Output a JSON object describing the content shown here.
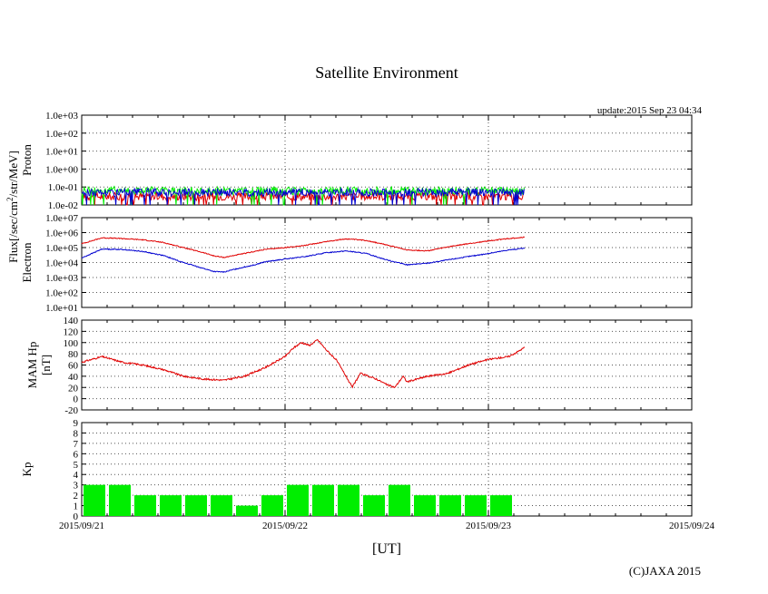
{
  "title": "Satellite Environment",
  "update": "update:2015 Sep 23 04:34",
  "copyright": "(C)JAXA 2015",
  "xlabel": "[UT]",
  "flux_label": "Flux[/sec/cm",
  "flux_sup": "2",
  "flux_label_tail": "/str/MeV]",
  "x_ticks": [
    "2015/09/21",
    "2015/09/22",
    "2015/09/23",
    "2015/09/24"
  ],
  "colors": {
    "red": "#e00000",
    "blue": "#0000d0",
    "green": "#00ee00",
    "grid": "#555555"
  },
  "chart_data": [
    {
      "type": "line",
      "panel": "proton",
      "ylabel": "Proton",
      "yscale": "log",
      "ylim": [
        0.01,
        1000
      ],
      "y_ticks": [
        "1.0e+03",
        "1.0e+02",
        "1.0e+01",
        "1.0e+00",
        "1.0e-01",
        "1.0e-02"
      ],
      "xlim_days": [
        0,
        3
      ],
      "series": [
        {
          "color": "red",
          "x": [
            0,
            0.5,
            1.0,
            1.5,
            2.0,
            2.18
          ],
          "y": [
            0.03,
            0.03,
            0.03,
            0.03,
            0.03,
            0.03
          ]
        },
        {
          "color": "green",
          "x": [
            0,
            0.5,
            1.0,
            1.5,
            2.0,
            2.18
          ],
          "y": [
            0.07,
            0.06,
            0.06,
            0.06,
            0.06,
            0.06
          ]
        },
        {
          "color": "blue",
          "x": [
            0,
            0.5,
            1.0,
            1.5,
            2.0,
            2.18
          ],
          "y": [
            0.05,
            0.05,
            0.05,
            0.05,
            0.05,
            0.05
          ]
        }
      ]
    },
    {
      "type": "line",
      "panel": "electron",
      "ylabel": "Electron",
      "yscale": "log",
      "ylim": [
        10,
        10000000
      ],
      "y_ticks": [
        "1.0e+07",
        "1.0e+06",
        "1.0e+05",
        "1.0e+04",
        "1.0e+03",
        "1.0e+02",
        "1.0e+01"
      ],
      "xlim_days": [
        0,
        3
      ],
      "series": [
        {
          "color": "red",
          "x": [
            0,
            0.1,
            0.2,
            0.3,
            0.4,
            0.5,
            0.6,
            0.65,
            0.7,
            0.75,
            0.8,
            0.85,
            0.9,
            1.0,
            1.1,
            1.2,
            1.3,
            1.4,
            1.5,
            1.6,
            1.7,
            1.8,
            1.9,
            2.0,
            2.1,
            2.18
          ],
          "y": [
            180000,
            450000,
            400000,
            330000,
            220000,
            100000,
            45000,
            28000,
            22000,
            30000,
            40000,
            55000,
            75000,
            100000,
            140000,
            250000,
            380000,
            300000,
            150000,
            70000,
            60000,
            110000,
            180000,
            280000,
            400000,
            500000
          ]
        },
        {
          "color": "blue",
          "x": [
            0,
            0.1,
            0.2,
            0.3,
            0.4,
            0.5,
            0.6,
            0.65,
            0.7,
            0.75,
            0.8,
            0.85,
            0.9,
            1.0,
            1.1,
            1.2,
            1.3,
            1.4,
            1.5,
            1.6,
            1.7,
            1.8,
            1.9,
            2.0,
            2.1,
            2.18
          ],
          "y": [
            20000,
            80000,
            75000,
            55000,
            30000,
            10000,
            4000,
            2500,
            2300,
            3500,
            5000,
            7000,
            11000,
            17000,
            25000,
            45000,
            60000,
            40000,
            15000,
            7000,
            9000,
            15000,
            25000,
            40000,
            70000,
            90000
          ]
        }
      ]
    },
    {
      "type": "line",
      "panel": "mam_hp",
      "ylabel": "MAM Hp",
      "ylabel2": "[nT]",
      "yscale": "linear",
      "ylim": [
        -20,
        140
      ],
      "y_ticks": [
        "140",
        "120",
        "100",
        "80",
        "60",
        "40",
        "20",
        "0",
        "-20"
      ],
      "xlim_days": [
        0,
        3
      ],
      "series": [
        {
          "color": "red",
          "x": [
            0,
            0.1,
            0.2,
            0.3,
            0.4,
            0.5,
            0.6,
            0.7,
            0.8,
            0.9,
            1.0,
            1.04,
            1.08,
            1.12,
            1.16,
            1.2,
            1.25,
            1.3,
            1.33,
            1.37,
            1.45,
            1.5,
            1.54,
            1.58,
            1.6,
            1.7,
            1.8,
            1.9,
            2.0,
            2.1,
            2.15,
            2.18
          ],
          "y": [
            65,
            75,
            65,
            60,
            52,
            40,
            35,
            33,
            40,
            55,
            75,
            90,
            100,
            95,
            105,
            88,
            70,
            40,
            20,
            45,
            35,
            25,
            20,
            40,
            30,
            40,
            45,
            60,
            70,
            75,
            85,
            92
          ]
        }
      ]
    },
    {
      "type": "bar",
      "panel": "kp",
      "ylabel": "Kp",
      "ylim": [
        0,
        9
      ],
      "y_ticks": [
        "9",
        "8",
        "7",
        "6",
        "5",
        "4",
        "3",
        "2",
        "1",
        "0"
      ],
      "xlim_days": [
        0,
        3
      ],
      "bar_width_days": 0.125,
      "values": [
        3,
        3,
        2,
        2,
        2,
        2,
        1,
        2,
        3,
        3,
        3,
        2,
        3,
        2,
        2,
        2,
        2
      ]
    }
  ]
}
